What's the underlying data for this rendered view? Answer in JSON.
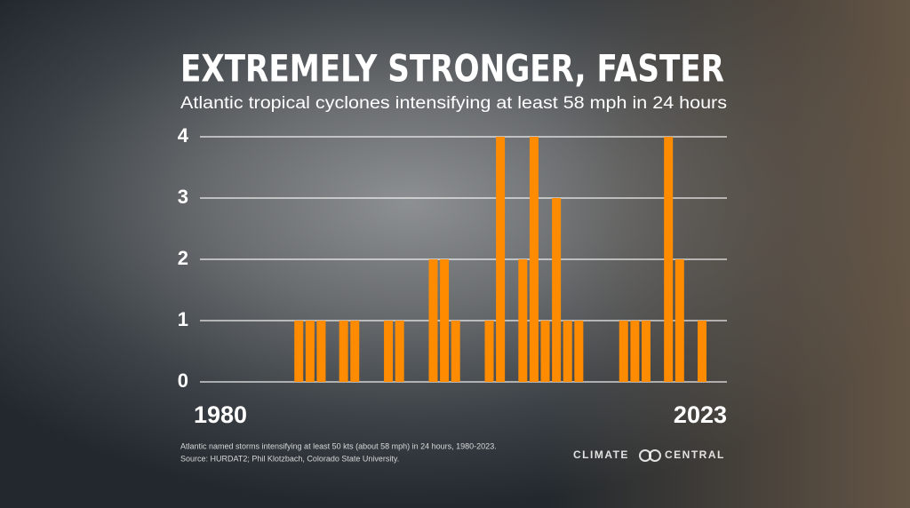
{
  "chart_data": {
    "type": "bar",
    "title": "EXTREMELY STRONGER, FASTER",
    "subtitle": "Atlantic tropical cyclones intensifying at least 58 mph in 24 hours",
    "categories": [
      "1980",
      null,
      null,
      null,
      null,
      null,
      null,
      null,
      null,
      null,
      null,
      null,
      null,
      null,
      null,
      null,
      null,
      null,
      null,
      null,
      null,
      null,
      null,
      null,
      null,
      null,
      null,
      null,
      null,
      null,
      null,
      null,
      null,
      null,
      null,
      null,
      null,
      null,
      null,
      null,
      null,
      null,
      null,
      "2023"
    ],
    "values": [
      0,
      0,
      0,
      0,
      0,
      0,
      0,
      1,
      1,
      1,
      0,
      1,
      1,
      0,
      0,
      1,
      1,
      0,
      0,
      2,
      2,
      1,
      0,
      0,
      1,
      4,
      0,
      2,
      4,
      1,
      3,
      1,
      1,
      0,
      0,
      0,
      1,
      1,
      1,
      0,
      4,
      2,
      0,
      1
    ],
    "color": "#ff8c00",
    "ylim": [
      0,
      4
    ],
    "yticks": [
      0,
      1,
      2,
      3,
      4
    ],
    "grid": true,
    "footnote": [
      "Atlantic named storms intensifying at least 50 kts (about 58 mph) in 24 hours, 1980-2023.",
      "Source: HURDAT2; Phil Klotzbach, Colorado State University."
    ],
    "logo": [
      "CLIMATE",
      "CENTRAL"
    ]
  }
}
